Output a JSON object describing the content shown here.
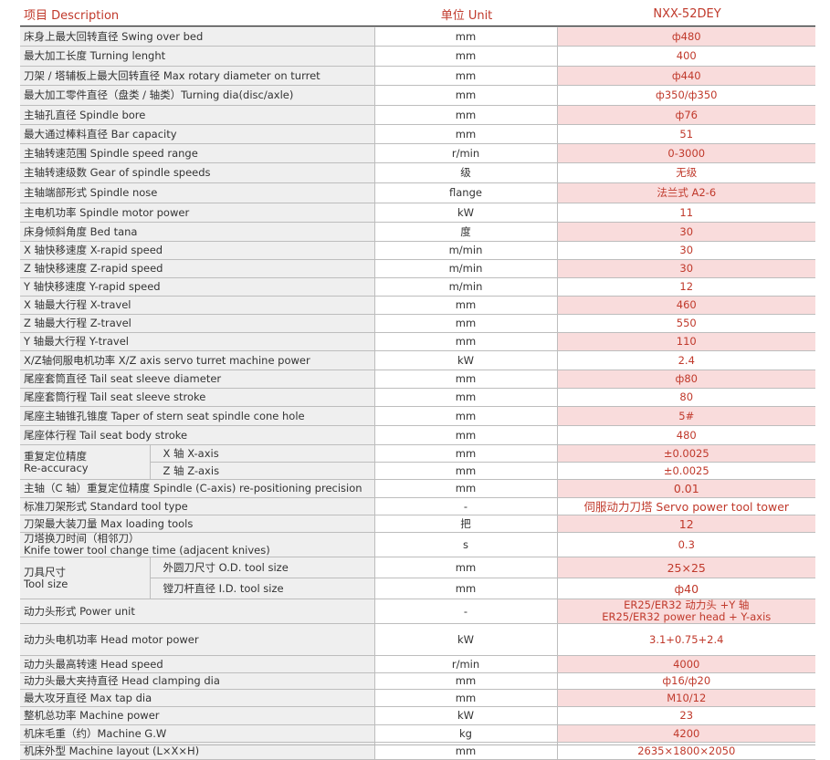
{
  "header": {
    "item": "项目 Description",
    "unit": "单位 Unit",
    "model": "NXX-52DEY"
  },
  "rows": [
    {
      "label": "床身上最大回转直径 Swing over bed",
      "unit": "mm",
      "value": "ф480"
    },
    {
      "label": "最大加工长度 Turning lenght",
      "unit": "mm",
      "value": "400"
    },
    {
      "label": "刀架 / 塔辅板上最大回转直径 Max  rotary  diameter on turret",
      "unit": "mm",
      "value": "ф440"
    },
    {
      "label": "最大加工零件直径（盘类 / 轴类）Turning dia(disc/axle)",
      "unit": "mm",
      "value": "ф350/ф350"
    },
    {
      "label": "主轴孔直径 Spindle bore",
      "unit": "mm",
      "value": "ф76"
    },
    {
      "label": "最大通过棒料直径 Bar capacity",
      "unit": "mm",
      "value": "51"
    },
    {
      "label": "主轴转速范围 Spindle speed range",
      "unit": "r/min",
      "value": "0-3000"
    },
    {
      "label": "主轴转速级数 Gear of spindle speeds",
      "unit": "级",
      "value": "无级"
    },
    {
      "label": "主轴端部形式 Spindle nose",
      "unit": "flange",
      "value": "法兰式 A2-6"
    },
    {
      "label": "主电机功率 Spindle motor power",
      "unit": "kW",
      "value": "11"
    },
    {
      "label": "床身倾斜角度 Bed tana",
      "unit": "度",
      "value": "30"
    },
    {
      "label": "X 轴快移速度 X-rapid speed",
      "unit": "m/min",
      "value": "30"
    },
    {
      "label": "Z 轴快移速度 Z-rapid speed",
      "unit": "m/min",
      "value": "30"
    },
    {
      "label": "Y 轴快移速度 Y-rapid speed",
      "unit": "m/min",
      "value": "12"
    },
    {
      "label": "X 轴最大行程 X-travel",
      "unit": "mm",
      "value": "460"
    },
    {
      "label": "Z 轴最大行程 Z-travel",
      "unit": "mm",
      "value": "550"
    },
    {
      "label": "Y 轴最大行程 Y-travel",
      "unit": "mm",
      "value": "110"
    },
    {
      "label": "X/Z轴伺服电机功率 X/Z axis servo turret machine power",
      "unit": "kW",
      "value": "2.4"
    },
    {
      "label": "尾座套筒直径 Tail seat sleeve diameter",
      "unit": "mm",
      "value": "ф80"
    },
    {
      "label": "尾座套筒行程 Tail seat sleeve stroke",
      "unit": "mm",
      "value": "80"
    },
    {
      "label": "尾座主轴锥孔锥度 Taper of stern seat spindle cone hole",
      "unit": "mm",
      "value": "5#"
    },
    {
      "label": "尾座体行程 Tail seat body stroke",
      "unit": "mm",
      "value": "480"
    },
    {
      "group": "重复定位精度\nRe-accuracy",
      "subs": [
        {
          "label": "X 轴 X-axis",
          "unit": "mm",
          "value": "±0.0025"
        },
        {
          "label": "Z 轴 Z-axis",
          "unit": "mm",
          "value": "±0.0025"
        }
      ]
    },
    {
      "label": "主轴（C 轴）重复定位精度 Spindle (C-axis) re-positioning precision",
      "unit": "mm",
      "value": "0.01"
    },
    {
      "label": "标准刀架形式 Standard tool type",
      "unit": "-",
      "value": "伺服动力刀塔 Servo power tool tower"
    },
    {
      "label": "刀架最大装刀量 Max loading tools",
      "unit": "把",
      "value": "12"
    },
    {
      "label": "刀塔换刀时间（相邻刀）\nKnife tower tool change time (adjacent knives)",
      "unit": "s",
      "value": "0.3"
    },
    {
      "group": "刀具尺寸\nTool size",
      "subs": [
        {
          "label": "外圆刀尺寸 O.D. tool size",
          "unit": "mm",
          "value": "25×25"
        },
        {
          "label": "镗刀杆直径 I.D. tool size",
          "unit": "mm",
          "value": "ф40"
        }
      ]
    },
    {
      "label": "动力头形式 Power unit",
      "unit": "-",
      "value": "ER25/ER32 动力头 +Y 轴\nER25/ER32 power head + Y-axis"
    },
    {
      "label": "动力头电机功率 Head motor power",
      "unit": "kW",
      "value": "3.1+0.75+2.4"
    },
    {
      "label": "动力头最高转速 Head speed",
      "unit": "r/min",
      "value": "4000"
    },
    {
      "label": "动力头最大夹持直径 Head clamping dia",
      "unit": "mm",
      "value": "ф16/ф20"
    },
    {
      "label": "最大攻牙直径 Max tap dia",
      "unit": "mm",
      "value": "M10/12"
    },
    {
      "label": "整机总功率 Machine power",
      "unit": "kW",
      "value": "23"
    },
    {
      "label": "机床毛重（约）Machine G.W",
      "unit": "kg",
      "value": "4200"
    },
    {
      "label": "机床外型 Machine layout (L×X×H)",
      "unit": "mm",
      "value": "2635×1800×2050"
    }
  ]
}
